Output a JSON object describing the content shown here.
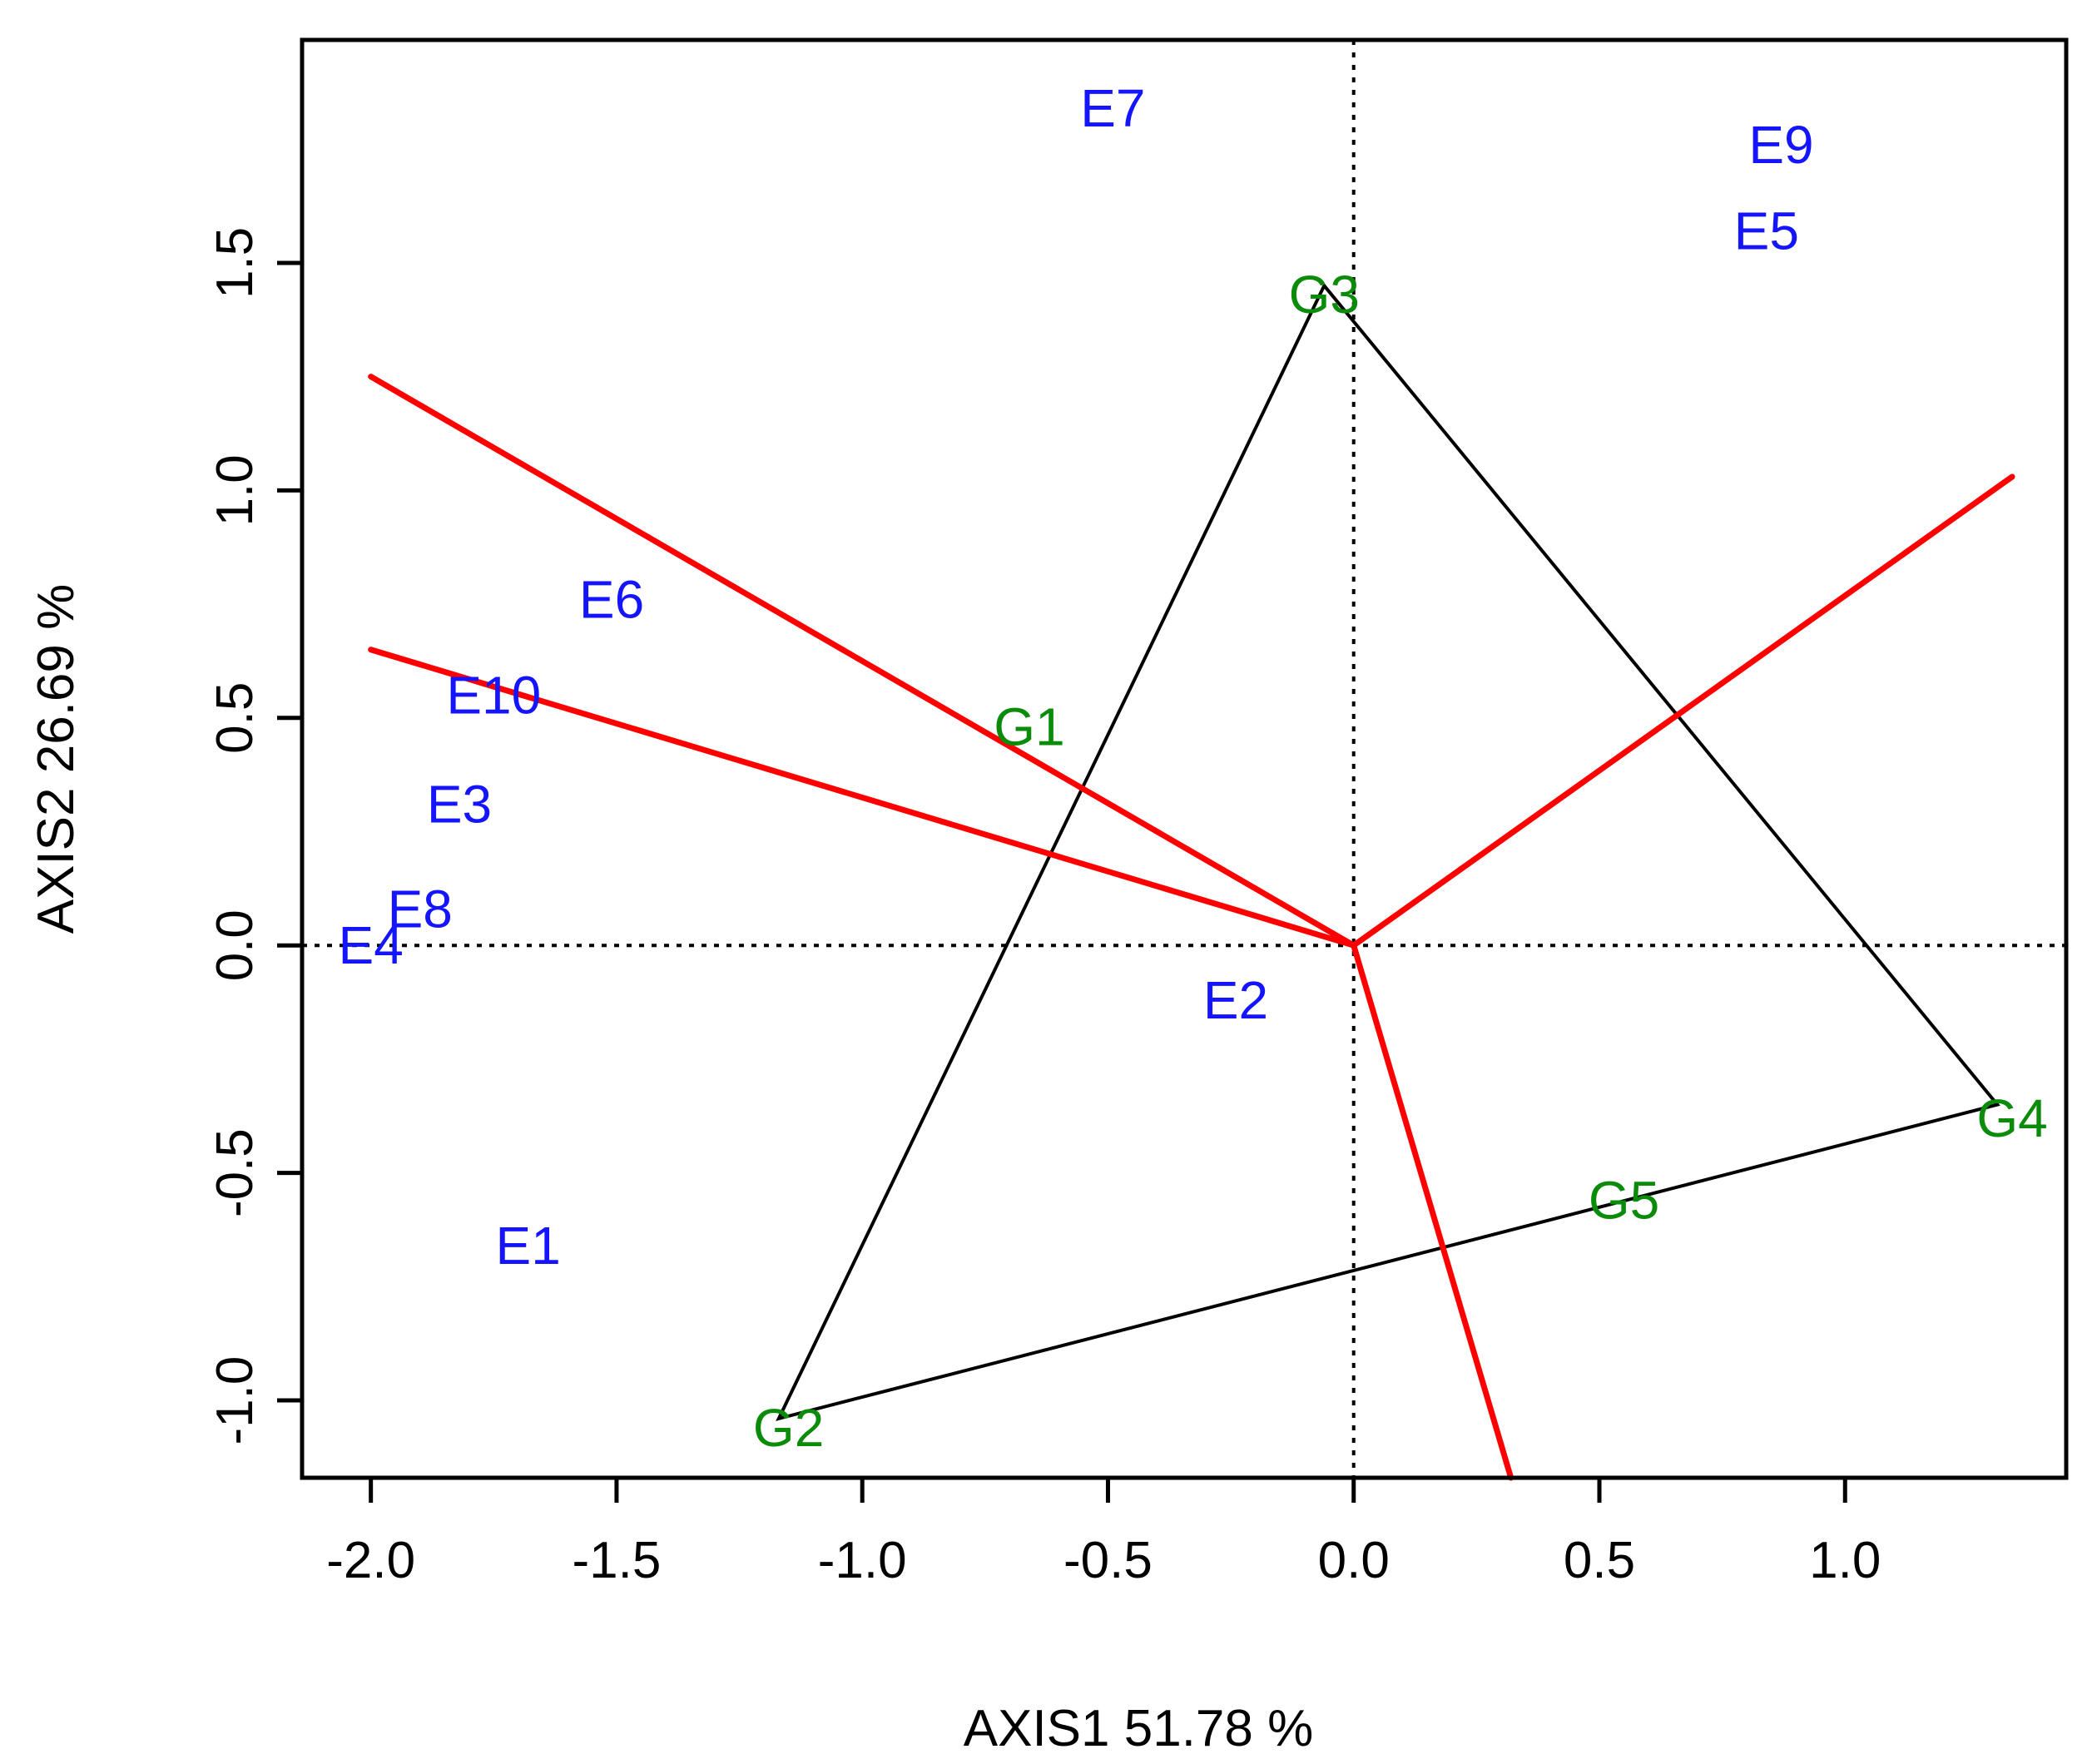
{
  "chart_data": {
    "type": "scatter",
    "subtype": "GGE biplot (which-won-where polygon)",
    "xlabel": "AXIS1 51.78 %",
    "ylabel": "AXIS2 26.69 %",
    "xlim": [
      -2.14,
      1.45
    ],
    "ylim": [
      -1.17,
      1.99
    ],
    "xticks": [
      -2.0,
      -1.5,
      -1.0,
      -0.5,
      0.0,
      0.5,
      1.0
    ],
    "xtick_labels": [
      "-2.0",
      "-1.5",
      "-1.0",
      "-0.5",
      "0.0",
      "0.5",
      "1.0"
    ],
    "yticks": [
      -1.0,
      -0.5,
      0.0,
      0.5,
      1.0,
      1.5
    ],
    "ytick_labels": [
      "-1.0",
      "-0.5",
      "0.0",
      "0.5",
      "1.0",
      "1.5"
    ],
    "reference_lines": {
      "x": 0.0,
      "y": 0.0,
      "style": "dotted"
    },
    "colors": {
      "environment": "#1414ff",
      "genotype": "#0a8c0a",
      "polygon": "#000000",
      "sector_rays": "#ff0000",
      "axes": "#000000"
    },
    "environments": [
      {
        "label": "E1",
        "x": -1.68,
        "y": -0.66
      },
      {
        "label": "E2",
        "x": -0.24,
        "y": -0.12
      },
      {
        "label": "E3",
        "x": -1.82,
        "y": 0.31
      },
      {
        "label": "E4",
        "x": -2.0,
        "y": 0.0
      },
      {
        "label": "E5",
        "x": 0.84,
        "y": 1.57
      },
      {
        "label": "E6",
        "x": -1.51,
        "y": 0.76
      },
      {
        "label": "E7",
        "x": -0.49,
        "y": 1.84
      },
      {
        "label": "E8",
        "x": -1.9,
        "y": 0.08
      },
      {
        "label": "E9",
        "x": 0.87,
        "y": 1.76
      },
      {
        "label": "E10",
        "x": -1.75,
        "y": 0.55
      }
    ],
    "genotypes": [
      {
        "label": "G1",
        "x": -0.66,
        "y": 0.48
      },
      {
        "label": "G2",
        "x": -1.15,
        "y": -1.06
      },
      {
        "label": "G3",
        "x": -0.06,
        "y": 1.43
      },
      {
        "label": "G4",
        "x": 1.34,
        "y": -0.38
      },
      {
        "label": "G5",
        "x": 0.55,
        "y": -0.56
      }
    ],
    "polygon": [
      {
        "x": -0.06,
        "y": 1.45
      },
      {
        "x": 1.31,
        "y": -0.35
      },
      {
        "x": -1.17,
        "y": -1.04
      }
    ],
    "sector_rays": [
      {
        "from": [
          0.0,
          0.0
        ],
        "to": [
          -2.0,
          1.25
        ]
      },
      {
        "from": [
          0.0,
          0.0
        ],
        "to": [
          -2.0,
          0.65
        ]
      },
      {
        "from": [
          0.0,
          0.0
        ],
        "to": [
          1.34,
          1.03
        ]
      },
      {
        "from": [
          0.0,
          0.0
        ],
        "to": [
          0.32,
          -1.17
        ]
      }
    ]
  }
}
